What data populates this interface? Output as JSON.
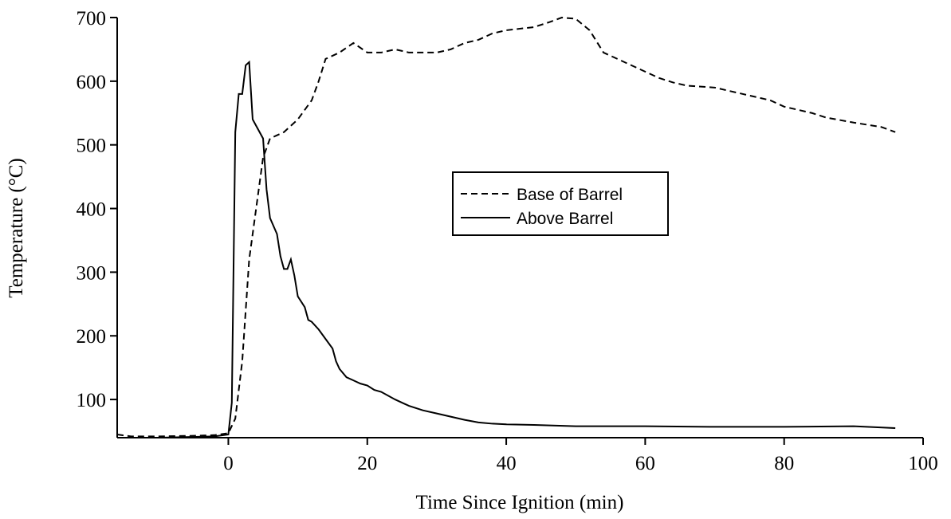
{
  "chart_data": {
    "type": "line",
    "xlabel": "Time Since Ignition (min)",
    "ylabel": "Temperature (°C)",
    "xlim": [
      -16,
      100
    ],
    "ylim": [
      40,
      700
    ],
    "xticks": [
      0,
      20,
      40,
      60,
      80,
      100
    ],
    "yticks": [
      100,
      200,
      300,
      400,
      500,
      600,
      700
    ],
    "series": [
      {
        "name": "Base of Barrel",
        "color": "#000000",
        "dash": true,
        "x": [
          -16,
          -14,
          -10,
          -5,
          -2,
          0,
          1,
          2,
          3,
          4,
          5,
          6,
          7,
          8,
          10,
          12,
          13,
          14,
          16,
          18,
          20,
          22,
          24,
          26,
          28,
          30,
          32,
          34,
          36,
          38,
          40,
          44,
          46,
          48,
          50,
          52,
          54,
          56,
          58,
          60,
          62,
          64,
          66,
          70,
          74,
          78,
          80,
          84,
          86,
          90,
          94,
          96
        ],
        "values": [
          45,
          42,
          42,
          43,
          44,
          47,
          70,
          160,
          320,
          400,
          480,
          510,
          515,
          520,
          540,
          570,
          600,
          635,
          645,
          660,
          645,
          645,
          650,
          645,
          645,
          645,
          650,
          660,
          665,
          675,
          680,
          685,
          692,
          700,
          698,
          680,
          645,
          635,
          625,
          615,
          605,
          598,
          593,
          590,
          580,
          570,
          560,
          550,
          543,
          535,
          528,
          520
        ]
      },
      {
        "name": "Above Barrel",
        "color": "#000000",
        "dash": false,
        "x": [
          -16,
          -10,
          -2,
          0,
          0.5,
          1,
          1.5,
          2,
          2.5,
          3,
          3.5,
          4,
          5,
          5.5,
          6,
          7,
          7.5,
          8,
          8.5,
          9,
          9.5,
          10,
          11,
          11.5,
          12,
          13,
          14,
          15,
          15.5,
          16,
          17,
          18,
          19,
          20,
          21,
          22,
          24,
          26,
          28,
          30,
          32,
          34,
          36,
          38,
          40,
          44,
          50,
          60,
          70,
          80,
          90,
          96
        ],
        "values": [
          40,
          40,
          42,
          45,
          95,
          520,
          580,
          580,
          625,
          630,
          540,
          530,
          510,
          430,
          385,
          360,
          325,
          305,
          305,
          320,
          295,
          262,
          245,
          225,
          222,
          210,
          195,
          180,
          160,
          148,
          135,
          130,
          125,
          122,
          115,
          112,
          100,
          90,
          83,
          78,
          73,
          68,
          64,
          62,
          61,
          60,
          58,
          58,
          57,
          57,
          58,
          55
        ]
      }
    ]
  }
}
